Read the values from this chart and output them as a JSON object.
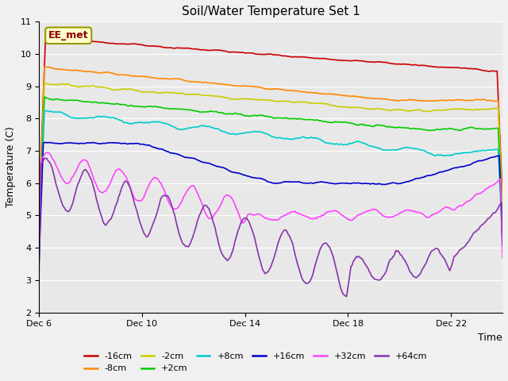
{
  "title": "Soil/Water Temperature Set 1",
  "xlabel": "Time",
  "ylabel": "Temperature (C)",
  "ylim": [
    2.0,
    11.0
  ],
  "yticks": [
    2.0,
    3.0,
    4.0,
    5.0,
    6.0,
    7.0,
    8.0,
    9.0,
    10.0,
    11.0
  ],
  "xtick_labels": [
    "Dec 6",
    "Dec 10",
    "Dec 14",
    "Dec 18",
    "Dec 22"
  ],
  "xtick_positions": [
    0,
    4,
    8,
    12,
    16
  ],
  "n_days": 18,
  "annotation": "EE_met",
  "fig_bg_color": "#f0f0f0",
  "plot_bg_color": "#e8e8e8",
  "grid_color": "#ffffff",
  "colors": {
    "-16cm": "#cc0000",
    "-8cm": "#ff8800",
    "-2cm": "#cccc00",
    "+2cm": "#00cc00",
    "+8cm": "#00cccc",
    "+16cm": "#0000cc",
    "+32cm": "#ff44ff",
    "+64cm": "#8833aa"
  },
  "legend_order": [
    "-16cm",
    "-8cm",
    "-2cm",
    "+2cm",
    "+8cm",
    "+16cm",
    "+32cm",
    "+64cm"
  ]
}
